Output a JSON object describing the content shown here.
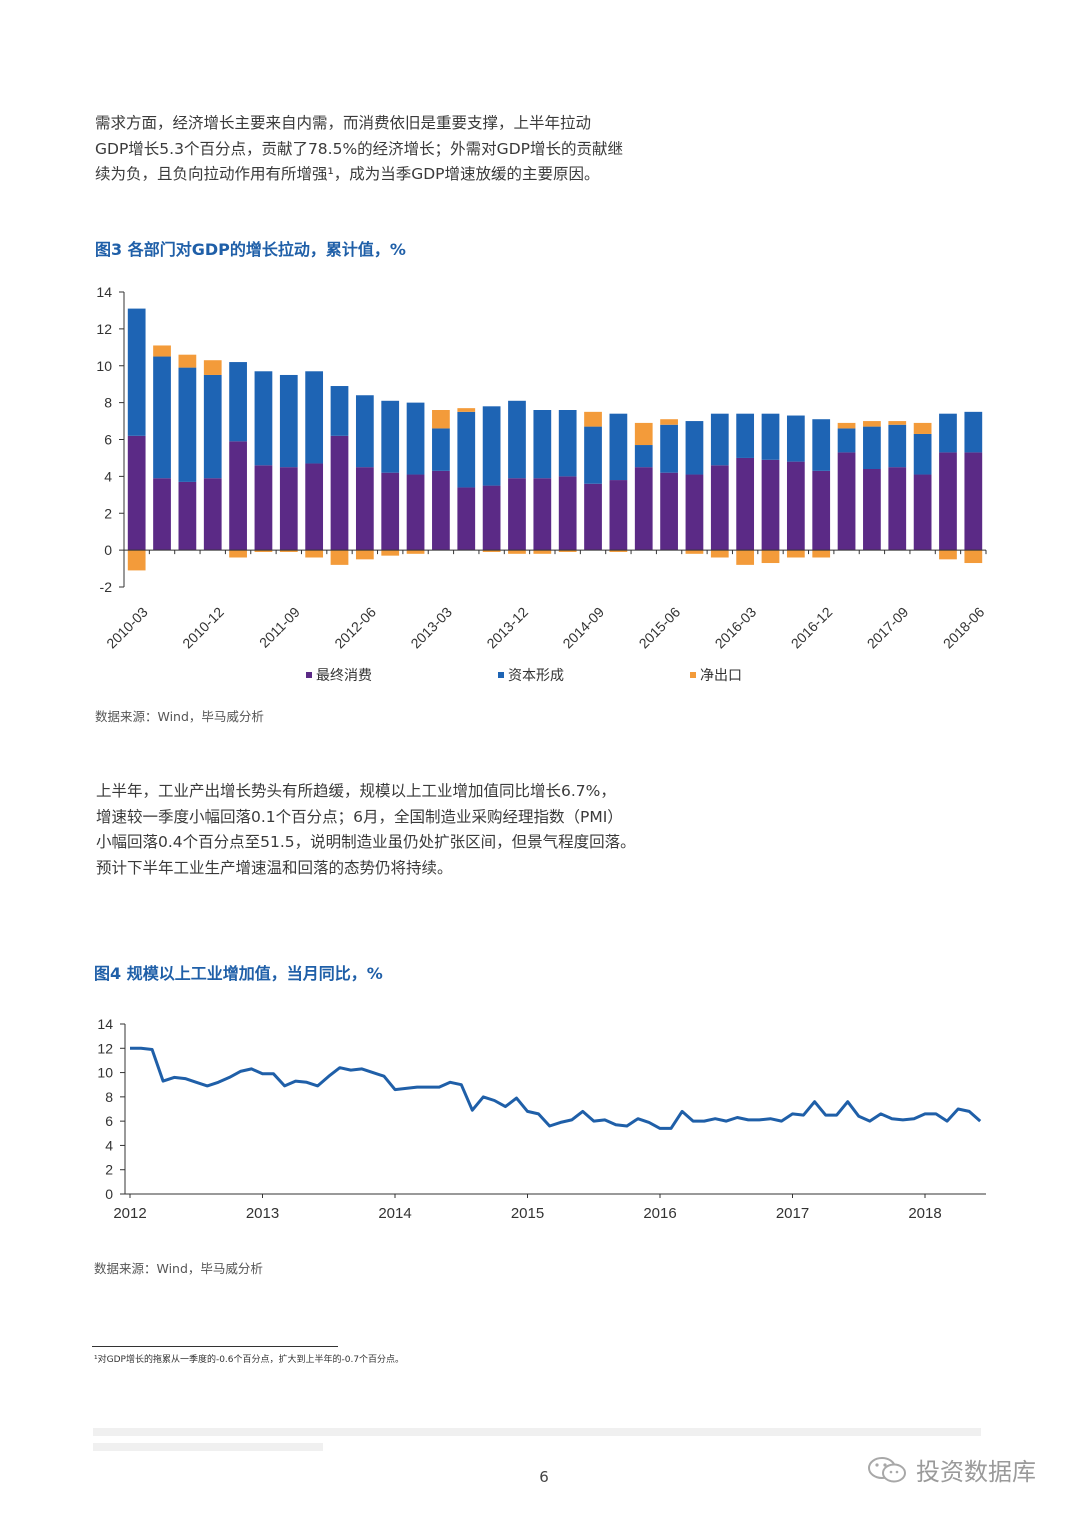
{
  "paragraph1": [
    "需求方面，经济增长主要来自内需，而消费依旧是重要支撑，上半年拉动",
    "GDP增长5.3个百分点，贡献了78.5%的经济增长；外需对GDP增长的贡献继",
    "续为负，且负向拉动作用有所增强¹，成为当季GDP增速放缓的主要原因。"
  ],
  "figure3": {
    "title": "图3 各部门对GDP的增长拉动，累计值，%",
    "source": "数据来源：Wind，毕马威分析"
  },
  "paragraph2": [
    "上半年，工业产出增长势头有所趋缓，规模以上工业增加值同比增长6.7%，",
    "增速较一季度小幅回落0.1个百分点；6月，全国制造业采购经理指数（PMI）",
    "小幅回落0.4个百分点至51.5，说明制造业虽仍处扩张区间，但景气程度回落。",
    "预计下半年工业生产增速温和回落的态势仍将持续。"
  ],
  "figure4": {
    "title": "图4 规模以上工业增加值，当月同比，%",
    "source": "数据来源：Wind，毕马威分析"
  },
  "footnote": "¹对GDP增长的拖累从一季度的-0.6个百分点，扩大到上半年的-0.7个百分点。",
  "page_number": "6",
  "watermark": {
    "text": "投资数据库",
    "icon": "wechat-icon"
  },
  "colors": {
    "consumption": "#5b2a86",
    "capital": "#1e64b4",
    "net_export": "#f39b3a",
    "line": "#1f5fa8",
    "title": "#1f5fa8"
  },
  "chart_data": [
    {
      "type": "bar",
      "stacked": true,
      "title": "图3 各部门对GDP的增长拉动，累计值，%",
      "categories": [
        "2010-03",
        "2010-06",
        "2010-09",
        "2010-12",
        "2011-03",
        "2011-06",
        "2011-09",
        "2011-12",
        "2012-03",
        "2012-06",
        "2012-09",
        "2012-12",
        "2013-03",
        "2013-06",
        "2013-09",
        "2013-12",
        "2014-03",
        "2014-06",
        "2014-09",
        "2014-12",
        "2015-03",
        "2015-06",
        "2015-09",
        "2015-12",
        "2016-03",
        "2016-06",
        "2016-09",
        "2016-12",
        "2017-03",
        "2017-06",
        "2017-09",
        "2017-12",
        "2018-03",
        "2018-06"
      ],
      "tick_labels": [
        "2010-03",
        "2010-12",
        "2011-09",
        "2012-06",
        "2013-03",
        "2013-12",
        "2014-09",
        "2015-06",
        "2016-03",
        "2016-12",
        "2017-09",
        "2018-06"
      ],
      "series": [
        {
          "name": "最终消费",
          "color": "#5b2a86",
          "values": [
            6.2,
            3.9,
            3.7,
            3.9,
            5.9,
            4.6,
            4.5,
            4.7,
            6.2,
            4.5,
            4.2,
            4.1,
            4.3,
            3.4,
            3.5,
            3.9,
            3.9,
            4.0,
            3.6,
            3.8,
            4.5,
            4.2,
            4.1,
            4.6,
            5.0,
            4.9,
            4.8,
            4.3,
            5.3,
            4.4,
            4.5,
            4.1,
            5.3,
            5.3
          ]
        },
        {
          "name": "资本形成",
          "color": "#1e64b4",
          "values": [
            6.9,
            6.6,
            6.2,
            5.6,
            4.3,
            5.1,
            5.0,
            5.0,
            2.7,
            3.9,
            3.9,
            3.9,
            2.3,
            4.1,
            4.3,
            4.2,
            3.7,
            3.6,
            3.1,
            3.6,
            1.2,
            2.6,
            2.9,
            2.8,
            2.4,
            2.5,
            2.5,
            2.8,
            1.3,
            2.3,
            2.3,
            2.2,
            2.1,
            2.2
          ]
        },
        {
          "name": "净出口",
          "color": "#f39b3a",
          "values": [
            -1.1,
            0.6,
            0.7,
            0.8,
            -0.4,
            -0.1,
            -0.1,
            -0.4,
            -0.8,
            -0.5,
            -0.3,
            -0.2,
            1.0,
            0.2,
            -0.1,
            -0.2,
            -0.2,
            -0.1,
            0.8,
            -0.1,
            1.2,
            0.3,
            -0.2,
            -0.4,
            -0.8,
            -0.7,
            -0.4,
            -0.4,
            0.3,
            0.3,
            0.2,
            0.6,
            -0.5,
            -0.7
          ]
        }
      ],
      "ylim": [
        -2,
        14
      ],
      "yticks": [
        -2,
        0,
        2,
        4,
        6,
        8,
        10,
        12,
        14
      ],
      "legend": "bottom"
    },
    {
      "type": "line",
      "title": "图4 规模以上工业增加值，当月同比，%",
      "series": [
        {
          "name": "",
          "color": "#1f5fa8",
          "values": [
            12.0,
            12.0,
            11.9,
            9.3,
            9.6,
            9.5,
            9.2,
            8.9,
            9.2,
            9.6,
            10.1,
            10.3,
            9.9,
            9.9,
            8.9,
            9.3,
            9.2,
            8.9,
            9.7,
            10.4,
            10.2,
            10.3,
            10.0,
            9.7,
            8.6,
            8.7,
            8.8,
            8.8,
            8.8,
            9.2,
            9.0,
            6.9,
            8.0,
            7.7,
            7.2,
            7.9,
            6.8,
            6.6,
            5.6,
            5.9,
            6.1,
            6.8,
            6.0,
            6.1,
            5.7,
            5.6,
            6.2,
            5.9,
            5.4,
            5.4,
            6.8,
            6.0,
            6.0,
            6.2,
            6.0,
            6.3,
            6.1,
            6.1,
            6.2,
            6.0,
            6.6,
            6.5,
            7.6,
            6.5,
            6.5,
            7.6,
            6.4,
            6.0,
            6.6,
            6.2,
            6.1,
            6.2,
            6.6,
            6.6,
            6.0,
            7.0,
            6.8,
            6.0
          ]
        }
      ],
      "x_start": "2012-01",
      "x_end": "2018-06",
      "xticks": [
        "2012",
        "2013",
        "2014",
        "2015",
        "2016",
        "2017",
        "2018"
      ],
      "ylim": [
        0,
        14
      ],
      "yticks": [
        0,
        2,
        4,
        6,
        8,
        10,
        12,
        14
      ],
      "legend": "none"
    }
  ]
}
